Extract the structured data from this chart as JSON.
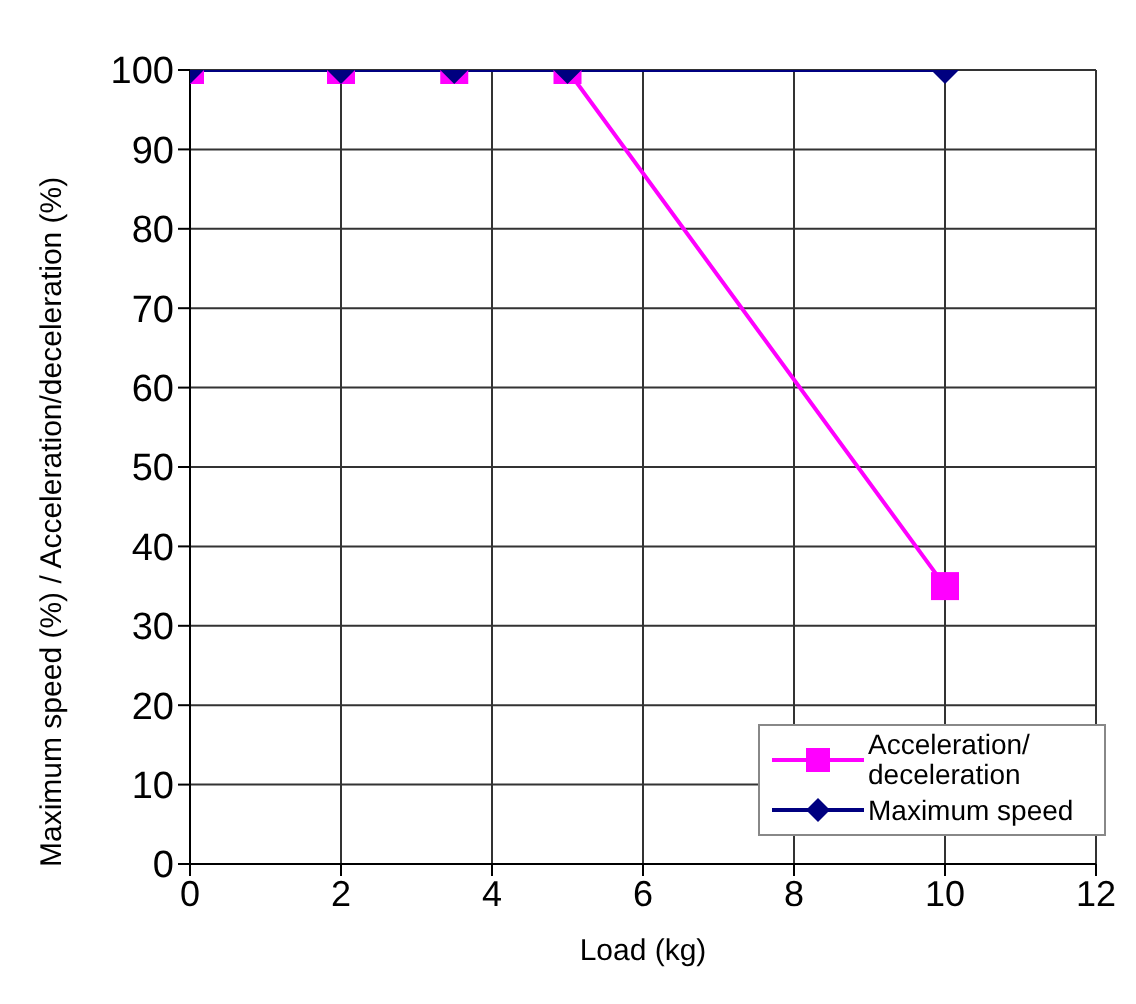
{
  "chart_data": {
    "type": "line",
    "xlabel": "Load (kg)",
    "ylabel": "Maximum speed (%) / Acceleration/deceleration (%)",
    "x": [
      0,
      2,
      3.5,
      5,
      10
    ],
    "series": [
      {
        "name": "Acceleration/deceleration",
        "color": "#ff00ff",
        "values": [
          100,
          100,
          100,
          100,
          35
        ],
        "marker": "square"
      },
      {
        "name": "Maximum speed",
        "color": "#000080",
        "values": [
          100,
          100,
          100,
          100,
          100
        ],
        "marker": "diamond"
      }
    ],
    "xlim": [
      0,
      12
    ],
    "xticks": [
      0,
      2,
      4,
      6,
      8,
      10,
      12
    ],
    "ylim": [
      0,
      100
    ],
    "yticks": [
      0,
      10,
      20,
      30,
      40,
      50,
      60,
      70,
      80,
      90,
      100
    ],
    "grid": true,
    "legend": "bottom right"
  }
}
